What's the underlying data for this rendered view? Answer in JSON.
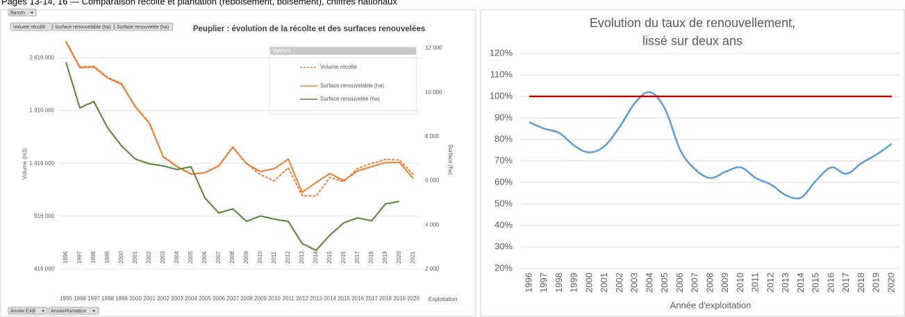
{
  "header": "Pages 13-14, 16 — Comparaison récolte et plantation (reboisement, boisement), chiffres nationaux",
  "controls": {
    "filter": "Bassin",
    "values": [
      "Volume récolté",
      "Surface renouvelable (ha)",
      "Surface renouvelée (ha)"
    ],
    "axis_fields": [
      "Année EAB",
      "AnnéePlantation"
    ]
  },
  "chart_data": [
    {
      "type": "line",
      "title": "Peuplier : évolution de la récolte et des surfaces renouvelées",
      "categories": [
        "1996",
        "1997",
        "1998",
        "1999",
        "2000",
        "2001",
        "2002",
        "2003",
        "2004",
        "2005",
        "2006",
        "2007",
        "2008",
        "2009",
        "2010",
        "2011",
        "2012",
        "2013",
        "2014",
        "2015",
        "2016",
        "2017",
        "2018",
        "2019",
        "2020",
        "2021"
      ],
      "categories2": [
        "1995",
        "1996",
        "1997",
        "1998",
        "1999",
        "2000",
        "2001",
        "2002",
        "2003",
        "2004",
        "2005",
        "2006",
        "2007",
        "2008",
        "2009",
        "2010",
        "2011",
        "2012",
        "2013",
        "2014",
        "2015",
        "2016",
        "2017",
        "2018",
        "2019",
        "2020"
      ],
      "x_label": "Exploitation",
      "y_label": "Volume (m3)",
      "y2_label": "Surface (ha)",
      "legend_title": "Valeurs",
      "legend": "upper right",
      "grid": true,
      "ylim": [
        416000,
        2570000
      ],
      "yticks": [
        {
          "value": 416000,
          "label": "416 000"
        },
        {
          "value": 916000,
          "label": "916 000"
        },
        {
          "value": 1416000,
          "label": "1 416 000"
        },
        {
          "value": 1916000,
          "label": "1 916 000"
        },
        {
          "value": 2416000,
          "label": "2 416 000"
        }
      ],
      "y2lim": [
        2000,
        12300
      ],
      "y2ticks": [
        {
          "value": 2000,
          "label": "2 000"
        },
        {
          "value": 4000,
          "label": "4 000"
        },
        {
          "value": 6000,
          "label": "6 000"
        },
        {
          "value": 8000,
          "label": "8 000"
        },
        {
          "value": 10000,
          "label": "10 000"
        },
        {
          "value": 12000,
          "label": "12 000"
        }
      ],
      "series": [
        {
          "name": "Volume récolté",
          "color": "#ed7d31",
          "line_style": "dashed",
          "values": [
            2574000,
            2330000,
            2337000,
            2232000,
            2173000,
            1955000,
            1804000,
            1482000,
            1390000,
            1317000,
            1330000,
            1396000,
            1574000,
            1416000,
            1311000,
            1251000,
            1376000,
            1113000,
            1107000,
            1284000,
            1245000,
            1370000,
            1416000,
            1455000,
            1449000,
            1311000
          ]
        },
        {
          "name": "Surface renouvelable (ha)",
          "color": "#ed7d31",
          "line_style": "solid",
          "axis": "y2",
          "values": [
            12280,
            11120,
            11150,
            10650,
            10370,
            9340,
            8610,
            7080,
            6640,
            6300,
            6360,
            6670,
            7520,
            6770,
            6420,
            6550,
            6980,
            5480,
            5920,
            6330,
            6010,
            6450,
            6640,
            6830,
            6830,
            6110
          ]
        },
        {
          "name": "Surface renouvelée (ha)",
          "color": "#548235",
          "line_style": "solid",
          "axis": "y2",
          "values": [
            11370,
            9300,
            9590,
            8400,
            7580,
            6980,
            6770,
            6670,
            6510,
            6640,
            5230,
            4540,
            4730,
            4160,
            4410,
            4260,
            4160,
            3160,
            2850,
            3540,
            4100,
            4320,
            4190,
            4950,
            5070,
            null
          ]
        }
      ]
    },
    {
      "type": "line",
      "title": [
        "Evolution du taux de renouvellement,",
        "lissé sur deux ans"
      ],
      "smooth": true,
      "grid": true,
      "categories": [
        "1996",
        "1997",
        "1998",
        "1999",
        "2000",
        "2001",
        "2002",
        "2003",
        "2004",
        "2005",
        "2006",
        "2007",
        "2008",
        "2009",
        "2010",
        "2011",
        "2012",
        "2013",
        "2014",
        "2015",
        "2016",
        "2017",
        "2018",
        "2019",
        "2020"
      ],
      "x_label": "Année d'exploitation",
      "ylim": [
        20,
        120
      ],
      "yticks": [
        {
          "value": 20,
          "label": "20%"
        },
        {
          "value": 30,
          "label": "30%"
        },
        {
          "value": 40,
          "label": "40%"
        },
        {
          "value": 50,
          "label": "50%"
        },
        {
          "value": 60,
          "label": "60%"
        },
        {
          "value": 70,
          "label": "70%"
        },
        {
          "value": 80,
          "label": "80%"
        },
        {
          "value": 90,
          "label": "90%"
        },
        {
          "value": 100,
          "label": "100%"
        },
        {
          "value": 110,
          "label": "110%"
        },
        {
          "value": 120,
          "label": "120%"
        }
      ],
      "series": [
        {
          "color": "#5b9bd5",
          "values": [
            88,
            85,
            83,
            77,
            74,
            77,
            86,
            97,
            102,
            94,
            75,
            66,
            62,
            65,
            67,
            62,
            59,
            54,
            53,
            61,
            67,
            64,
            69,
            73,
            78
          ]
        },
        {
          "color": "#c00000",
          "values": [
            100,
            100,
            100,
            100,
            100,
            100,
            100,
            100,
            100,
            100,
            100,
            100,
            100,
            100,
            100,
            100,
            100,
            100,
            100,
            100,
            100,
            100,
            100,
            100,
            100
          ]
        }
      ]
    }
  ]
}
